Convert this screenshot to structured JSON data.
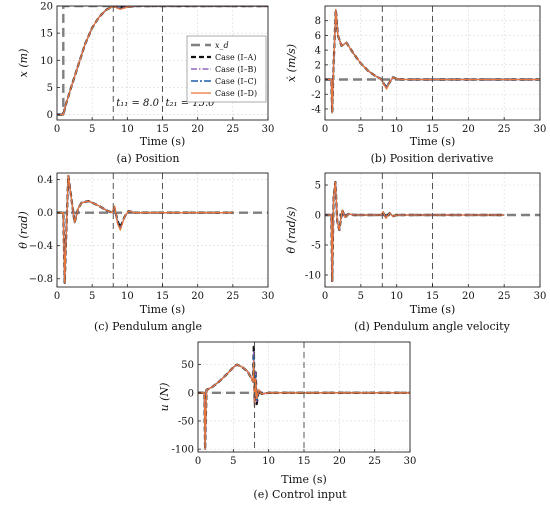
{
  "colors": {
    "xd": "#7f7f7f",
    "caseA": "#111111",
    "caseB": "#9467bd",
    "caseC": "#1f5fa8",
    "caseD": "#e8753a",
    "vline": "#555555"
  },
  "chart_data": [
    {
      "id": "position",
      "type": "line",
      "caption": "(a) Position",
      "xlabel": "Time (s)",
      "ylabel": "x (m)",
      "xlim": [
        0,
        30
      ],
      "ylim": [
        -1,
        20
      ],
      "xticks": [
        0,
        5,
        10,
        15,
        20,
        25,
        30
      ],
      "yticks": [
        0,
        5,
        10,
        15,
        20
      ],
      "vlines": [
        8.0,
        15.0
      ],
      "annotations": [
        {
          "text": "t₁₁ = 8.0",
          "x": 8.0
        },
        {
          "text": "t₂₁ = 15.0",
          "x": 15.0
        }
      ],
      "legend": {
        "position": "center-right",
        "entries": [
          "x_d",
          "Case (I–A)",
          "Case (I–B)",
          "Case (I–C)",
          "Case (I–D)"
        ]
      },
      "series": [
        {
          "name": "x_d",
          "style": "xd",
          "x": [
            0,
            0.9,
            0.9,
            30
          ],
          "y": [
            0,
            0,
            20,
            20
          ]
        },
        {
          "name": "Case (I–A)",
          "style": "caseA",
          "x": [
            0,
            0.9,
            1.3,
            2,
            3,
            4,
            5,
            6,
            7,
            8,
            9,
            10,
            11,
            12,
            13,
            15,
            30
          ],
          "y": [
            0,
            0,
            2,
            5,
            9,
            13,
            16,
            18,
            19.3,
            19.9,
            19.7,
            19.8,
            20,
            20,
            20,
            20,
            20
          ]
        },
        {
          "name": "Case (I–B)",
          "style": "caseB",
          "x": [
            0,
            0.9,
            1.3,
            2,
            3,
            4,
            5,
            6,
            7,
            8,
            9,
            10,
            11,
            12,
            13,
            15,
            30
          ],
          "y": [
            0,
            0,
            2,
            5,
            9,
            13,
            16,
            18,
            19.3,
            19.9,
            19.6,
            19.8,
            20,
            20,
            20,
            20,
            20
          ]
        },
        {
          "name": "Case (I–C)",
          "style": "caseC",
          "x": [
            0,
            0.9,
            1.3,
            2,
            3,
            4,
            5,
            6,
            7,
            8,
            9,
            10,
            11,
            12,
            13,
            15,
            30
          ],
          "y": [
            0,
            0,
            2,
            5,
            9,
            13,
            16,
            18,
            19.3,
            19.9,
            19.5,
            19.8,
            20,
            20,
            20,
            20,
            20
          ]
        },
        {
          "name": "Case (I–D)",
          "style": "caseD",
          "x": [
            0,
            0.9,
            1.3,
            2,
            3,
            4,
            5,
            6,
            7,
            8,
            9,
            10,
            11,
            12,
            13,
            15,
            30
          ],
          "y": [
            0,
            0,
            2,
            5,
            9,
            13,
            16,
            18,
            19.3,
            19.9,
            19.4,
            19.8,
            20,
            20,
            20,
            20,
            20
          ]
        }
      ]
    },
    {
      "id": "position-derivative",
      "type": "line",
      "caption": "(b) Position derivative",
      "xlabel": "Time (s)",
      "ylabel": "ẋ (m/s)",
      "xlim": [
        0,
        30
      ],
      "ylim": [
        -5.5,
        10
      ],
      "xticks": [
        0,
        5,
        10,
        15,
        20,
        25,
        30
      ],
      "yticks": [
        -4,
        -2,
        0,
        2,
        4,
        6,
        8
      ],
      "vlines": [
        8.0,
        15.0
      ],
      "series": [
        {
          "name": "x_d",
          "style": "xd",
          "x": [
            0,
            30
          ],
          "y": [
            0,
            0
          ]
        },
        {
          "name": "Case (I–A)",
          "style": "caseA",
          "x": [
            0,
            0.9,
            1.0,
            1.2,
            1.5,
            1.8,
            2.3,
            3,
            4,
            5,
            6,
            7,
            7.8,
            8.2,
            8.6,
            9.0,
            9.5,
            10,
            11,
            15,
            30
          ],
          "y": [
            0,
            0,
            -4.5,
            2,
            9.5,
            6,
            4.6,
            5,
            3.5,
            2.2,
            1.2,
            0.5,
            0.1,
            -0.6,
            -1,
            -0.4,
            0.3,
            0.1,
            0,
            0,
            0
          ]
        },
        {
          "name": "Case (I–B)",
          "style": "caseB",
          "x": [
            0,
            0.9,
            1.0,
            1.2,
            1.5,
            1.8,
            2.3,
            3,
            4,
            5,
            6,
            7,
            7.8,
            8.2,
            8.6,
            9.0,
            9.5,
            10,
            11,
            15,
            30
          ],
          "y": [
            0,
            0,
            -4.5,
            2,
            9.5,
            6,
            4.6,
            5,
            3.5,
            2.2,
            1.2,
            0.5,
            0.1,
            -0.6,
            -1.1,
            -0.4,
            0.3,
            0.1,
            0,
            0,
            0
          ]
        },
        {
          "name": "Case (I–C)",
          "style": "caseC",
          "x": [
            0,
            0.9,
            1.0,
            1.2,
            1.5,
            1.8,
            2.3,
            3,
            4,
            5,
            6,
            7,
            7.8,
            8.2,
            8.6,
            9.0,
            9.5,
            10,
            11,
            15,
            30
          ],
          "y": [
            0,
            0,
            -4.5,
            2,
            9.5,
            6,
            4.6,
            5,
            3.5,
            2.2,
            1.2,
            0.5,
            0.1,
            -0.6,
            -1.2,
            -0.4,
            0.3,
            0.1,
            0,
            0,
            0
          ]
        },
        {
          "name": "Case (I–D)",
          "style": "caseD",
          "x": [
            0,
            0.9,
            1.0,
            1.2,
            1.5,
            1.8,
            2.3,
            3,
            4,
            5,
            6,
            7,
            7.8,
            8.2,
            8.6,
            9.0,
            9.5,
            10,
            11,
            15,
            30
          ],
          "y": [
            0,
            0,
            -4.5,
            2,
            9.5,
            6,
            4.6,
            5,
            3.5,
            2.2,
            1.2,
            0.5,
            0.1,
            -0.6,
            -1.3,
            -0.4,
            0.3,
            0.1,
            0,
            0,
            0
          ]
        }
      ]
    },
    {
      "id": "pendulum-angle",
      "type": "line",
      "caption": "(c) Pendulum angle",
      "xlabel": "Time (s)",
      "ylabel": "θ (rad)",
      "xlim": [
        0,
        30
      ],
      "ylim": [
        -0.9,
        0.48
      ],
      "xticks": [
        0,
        5,
        10,
        15,
        20,
        25,
        30
      ],
      "yticks": [
        -0.8,
        -0.4,
        0.0,
        0.4
      ],
      "yticklabels": [
        "−0.8",
        "−0.4",
        "0.0",
        "0.4"
      ],
      "vlines": [
        8.0,
        15.0
      ],
      "series": [
        {
          "name": "x_d",
          "style": "xd",
          "x": [
            0,
            30
          ],
          "y": [
            0,
            0
          ]
        },
        {
          "name": "Case (I–A)",
          "style": "caseA",
          "x": [
            0,
            0.9,
            1.1,
            1.3,
            1.6,
            2.0,
            2.5,
            3.0,
            3.5,
            4.5,
            6,
            7,
            7.8,
            8.2,
            8.6,
            9.0,
            9.6,
            10.2,
            11,
            15,
            25
          ],
          "y": [
            0,
            0,
            -0.85,
            -0.3,
            0.45,
            0.2,
            -0.12,
            0.05,
            0.12,
            0.14,
            0.08,
            0.03,
            0.0,
            0.05,
            -0.1,
            -0.18,
            -0.05,
            0.02,
            0,
            0,
            0
          ]
        },
        {
          "name": "Case (I–B)",
          "style": "caseB",
          "x": [
            0,
            0.9,
            1.1,
            1.3,
            1.6,
            2.0,
            2.5,
            3.0,
            3.5,
            4.5,
            6,
            7,
            7.8,
            8.2,
            8.6,
            9.0,
            9.6,
            10.2,
            11,
            15,
            25
          ],
          "y": [
            0,
            0,
            -0.85,
            -0.3,
            0.45,
            0.2,
            -0.12,
            0.05,
            0.12,
            0.14,
            0.08,
            0.03,
            0.0,
            0.06,
            -0.11,
            -0.19,
            -0.05,
            0.02,
            0,
            0,
            0
          ]
        },
        {
          "name": "Case (I–C)",
          "style": "caseC",
          "x": [
            0,
            0.9,
            1.1,
            1.3,
            1.6,
            2.0,
            2.5,
            3.0,
            3.5,
            4.5,
            6,
            7,
            7.8,
            8.2,
            8.6,
            9.0,
            9.6,
            10.2,
            11,
            15,
            25
          ],
          "y": [
            0,
            0,
            -0.85,
            -0.3,
            0.45,
            0.2,
            -0.12,
            0.05,
            0.12,
            0.14,
            0.08,
            0.03,
            0.0,
            0.07,
            -0.12,
            -0.2,
            -0.05,
            0.02,
            0,
            0,
            0
          ]
        },
        {
          "name": "Case (I–D)",
          "style": "caseD",
          "x": [
            0,
            0.9,
            1.1,
            1.3,
            1.6,
            2.0,
            2.5,
            3.0,
            3.5,
            4.5,
            6,
            7,
            7.8,
            8.2,
            8.6,
            9.0,
            9.6,
            10.2,
            11,
            15,
            25
          ],
          "y": [
            0,
            0,
            -0.85,
            -0.3,
            0.45,
            0.2,
            -0.12,
            0.05,
            0.12,
            0.14,
            0.08,
            0.03,
            0.0,
            0.08,
            -0.13,
            -0.21,
            -0.05,
            0.02,
            0,
            0,
            0
          ]
        }
      ]
    },
    {
      "id": "pendulum-angle-velocity",
      "type": "line",
      "caption": "(d) Pendulum angle velocity",
      "xlabel": "Time (s)",
      "ylabel": "θ̇ (rad/s)",
      "xlim": [
        0,
        30
      ],
      "ylim": [
        -12,
        7
      ],
      "xticks": [
        0,
        5,
        10,
        15,
        20,
        25,
        30
      ],
      "yticks": [
        -10,
        -5,
        0,
        5
      ],
      "vlines": [
        8.0,
        15.0
      ],
      "series": [
        {
          "name": "x_d",
          "style": "xd",
          "x": [
            0,
            30
          ],
          "y": [
            0,
            0
          ]
        },
        {
          "name": "Case (I–A)",
          "style": "caseA",
          "x": [
            0,
            0.9,
            1.0,
            1.2,
            1.45,
            1.7,
            2.0,
            2.4,
            2.8,
            3.3,
            4,
            7.8,
            8.1,
            8.5,
            9.0,
            9.5,
            10,
            25
          ],
          "y": [
            0,
            0,
            -11,
            3,
            5.5,
            -1,
            -2.5,
            0.8,
            -0.4,
            0.2,
            0,
            0,
            0.4,
            -0.4,
            0.3,
            -0.2,
            0,
            0
          ]
        },
        {
          "name": "Case (I–B)",
          "style": "caseB",
          "x": [
            0,
            0.9,
            1.0,
            1.2,
            1.45,
            1.7,
            2.0,
            2.4,
            2.8,
            3.3,
            4,
            7.8,
            8.1,
            8.5,
            9.0,
            9.5,
            10,
            25
          ],
          "y": [
            0,
            0,
            -11,
            3,
            5.5,
            -1,
            -2.5,
            0.8,
            -0.4,
            0.2,
            0,
            0,
            0.45,
            -0.45,
            0.3,
            -0.2,
            0,
            0
          ]
        },
        {
          "name": "Case (I–C)",
          "style": "caseC",
          "x": [
            0,
            0.9,
            1.0,
            1.2,
            1.45,
            1.7,
            2.0,
            2.4,
            2.8,
            3.3,
            4,
            7.8,
            8.1,
            8.5,
            9.0,
            9.5,
            10,
            25
          ],
          "y": [
            0,
            0,
            -11,
            3,
            5.5,
            -1,
            -2.5,
            0.8,
            -0.4,
            0.2,
            0,
            0,
            0.5,
            -0.5,
            0.3,
            -0.2,
            0,
            0
          ]
        },
        {
          "name": "Case (I–D)",
          "style": "caseD",
          "x": [
            0,
            0.9,
            1.0,
            1.2,
            1.45,
            1.7,
            2.0,
            2.4,
            2.8,
            3.3,
            4,
            7.8,
            8.1,
            8.5,
            9.0,
            9.5,
            10,
            25
          ],
          "y": [
            0,
            0,
            -11,
            3,
            5.5,
            -1,
            -2.5,
            0.8,
            -0.4,
            0.2,
            0,
            0,
            0.55,
            -0.55,
            0.3,
            -0.2,
            0,
            0
          ]
        }
      ]
    },
    {
      "id": "control-input",
      "type": "line",
      "caption": "(e) Control input",
      "xlabel": "Time (s)",
      "ylabel": "u (N)",
      "xlim": [
        0,
        30
      ],
      "ylim": [
        -105,
        90
      ],
      "xticks": [
        0,
        5,
        10,
        15,
        20,
        25,
        30
      ],
      "yticks": [
        -100,
        -50,
        0,
        50
      ],
      "vlines": [
        8.0,
        15.0
      ],
      "series": [
        {
          "name": "x_d",
          "style": "xd",
          "x": [
            0,
            30
          ],
          "y": [
            0,
            0
          ]
        },
        {
          "name": "Case (I–A)",
          "style": "caseA",
          "x": [
            0,
            0.9,
            1.0,
            1.2,
            2,
            3,
            4,
            5,
            5.5,
            6.2,
            7,
            7.6,
            7.8,
            7.9,
            8.0,
            8.15,
            8.3,
            8.6,
            9,
            10,
            30
          ],
          "y": [
            0,
            0,
            -100,
            5,
            10,
            20,
            32,
            45,
            50,
            46,
            38,
            25,
            20,
            85,
            -15,
            40,
            -20,
            5,
            -2,
            0,
            0
          ]
        },
        {
          "name": "Case (I–B)",
          "style": "caseB",
          "x": [
            0,
            0.9,
            1.0,
            1.2,
            2,
            3,
            4,
            5,
            5.5,
            6.2,
            7,
            7.6,
            7.8,
            7.9,
            8.0,
            8.15,
            8.3,
            8.6,
            9,
            10,
            30
          ],
          "y": [
            0,
            0,
            -100,
            5,
            10,
            20,
            32,
            45,
            50,
            46,
            38,
            25,
            20,
            75,
            -18,
            35,
            -15,
            5,
            -2,
            0,
            0
          ]
        },
        {
          "name": "Case (I–C)",
          "style": "caseC",
          "x": [
            0,
            0.9,
            1.0,
            1.2,
            2,
            3,
            4,
            5,
            5.5,
            6.2,
            7,
            7.6,
            7.8,
            7.9,
            8.0,
            8.15,
            8.3,
            8.6,
            9,
            10,
            30
          ],
          "y": [
            0,
            0,
            -100,
            5,
            10,
            20,
            32,
            45,
            50,
            46,
            38,
            25,
            20,
            65,
            -22,
            30,
            -12,
            5,
            -2,
            0,
            0
          ]
        },
        {
          "name": "Case (I–D)",
          "style": "caseD",
          "x": [
            0,
            0.9,
            1.0,
            1.2,
            2,
            3,
            4,
            5,
            5.5,
            6.2,
            7,
            7.6,
            7.8,
            7.9,
            8.0,
            8.15,
            8.3,
            8.6,
            9,
            10,
            30
          ],
          "y": [
            0,
            0,
            -100,
            5,
            10,
            20,
            32,
            45,
            50,
            46,
            38,
            25,
            20,
            55,
            -25,
            25,
            -10,
            5,
            -2,
            0,
            0
          ]
        }
      ]
    }
  ]
}
